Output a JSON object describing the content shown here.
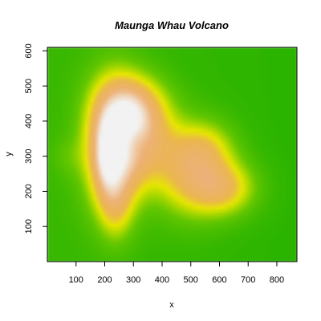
{
  "chart_data": {
    "type": "heatmap",
    "title": "Maunga Whau Volcano",
    "xlabel": "x",
    "ylabel": "y",
    "xlim": [
      0,
      870
    ],
    "ylim": [
      0,
      610
    ],
    "x_ticks": [
      100,
      200,
      300,
      400,
      500,
      600,
      700,
      800
    ],
    "y_ticks": [
      100,
      200,
      300,
      400,
      500,
      600
    ],
    "colormap": "terrain",
    "colors": {
      "low": "#00a600",
      "mid_low": "#63c600",
      "mid": "#e6e600",
      "mid_high": "#eab64e",
      "high": "#ecb176",
      "peak": "#f2f2f2"
    },
    "grid": false,
    "legend": "none"
  }
}
